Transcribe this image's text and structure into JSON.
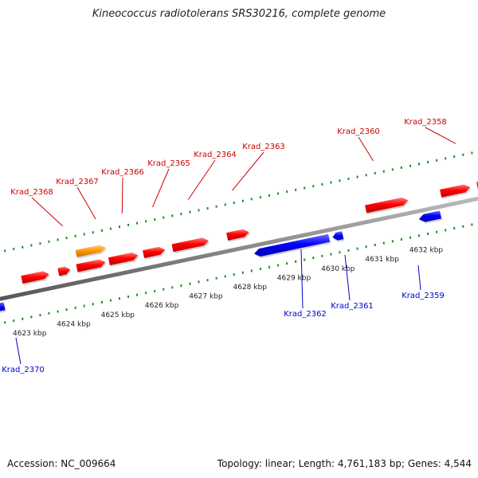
{
  "title": "Kineococcus radiotolerans SRS30216, complete genome",
  "footer": {
    "accession_label": "Accession:",
    "accession": "NC_009664",
    "topology_label": "Topology:",
    "topology": "linear",
    "length_label": "Length:",
    "length": "4,761,183 bp",
    "genes_label": "Genes:",
    "genes": "4,544"
  },
  "colors": {
    "forward_gene": "#ff0000",
    "forward_label": "#cc0000",
    "highlight_gene": "#ff9900",
    "reverse_gene": "#0000ff",
    "reverse_label": "#0000cc",
    "tick": "#228b22",
    "backbone": "#888888"
  },
  "scale_kbp": [
    {
      "pos": 4623,
      "label": "4623 kbp"
    },
    {
      "pos": 4624,
      "label": "4624 kbp"
    },
    {
      "pos": 4625,
      "label": "4625 kbp"
    },
    {
      "pos": 4626,
      "label": "4626 kbp"
    },
    {
      "pos": 4627,
      "label": "4627 kbp"
    },
    {
      "pos": 4628,
      "label": "4628 kbp"
    },
    {
      "pos": 4629,
      "label": "4629 kbp"
    },
    {
      "pos": 4630,
      "label": "4630 kbp"
    },
    {
      "pos": 4631,
      "label": "4631 kbp"
    },
    {
      "pos": 4632,
      "label": "4632 kbp"
    }
  ],
  "genes_forward": [
    {
      "start": 4623.2,
      "end": 4623.82,
      "color": "red"
    },
    {
      "start": 4624.03,
      "end": 4624.3,
      "color": "red"
    },
    {
      "start": 4624.45,
      "end": 4625.1,
      "color": "red"
    },
    {
      "start": 4625.18,
      "end": 4625.84,
      "color": "red"
    },
    {
      "start": 4625.96,
      "end": 4626.45,
      "color": "red"
    },
    {
      "start": 4626.62,
      "end": 4627.44,
      "color": "red"
    },
    {
      "start": 4627.86,
      "end": 4628.36,
      "color": "red"
    },
    {
      "start": 4631.0,
      "end": 4631.96,
      "color": "red"
    },
    {
      "start": 4632.7,
      "end": 4633.37,
      "color": "red"
    },
    {
      "start": 4633.53,
      "end": 4633.75,
      "color": "red"
    }
  ],
  "genes_orange": [
    {
      "start": 4624.5,
      "end": 4625.17
    }
  ],
  "genes_reverse": [
    {
      "start": 4622.23,
      "end": 4622.7
    },
    {
      "start": 4628.37,
      "end": 4630.07
    },
    {
      "start": 4630.15,
      "end": 4630.38
    },
    {
      "start": 4632.11,
      "end": 4632.6
    }
  ],
  "labels_top": [
    {
      "name": "Krad_2368",
      "pos": 4624.06
    },
    {
      "name": "Krad_2367",
      "pos": 4624.81
    },
    {
      "name": "Krad_2366",
      "pos": 4625.41
    },
    {
      "name": "Krad_2365",
      "pos": 4626.1
    },
    {
      "name": "Krad_2364",
      "pos": 4626.91
    },
    {
      "name": "Krad_2363",
      "pos": 4627.91
    },
    {
      "name": "Krad_2360",
      "pos": 4631.11
    },
    {
      "name": "Krad_2358",
      "pos": 4632.98
    }
  ],
  "labels_bottom": [
    {
      "name": "Krad_2370",
      "pos": 4622.63
    },
    {
      "name": "Krad_2362",
      "pos": 4629.55
    },
    {
      "name": "Krad_2361",
      "pos": 4630.56
    },
    {
      "name": "Krad_2359",
      "pos": 4632.59
    }
  ]
}
